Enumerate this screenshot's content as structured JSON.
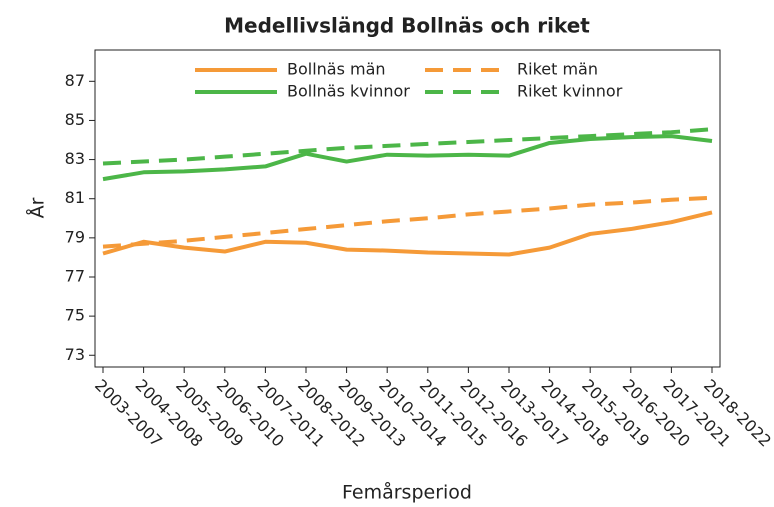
{
  "chart_data": {
    "type": "line",
    "title": "Medellivslängd Bollnäs och riket",
    "x_label": "Femårsperiod",
    "y_label": "År",
    "categories": [
      "2003-2007",
      "2004-2008",
      "2005-2009",
      "2006-2010",
      "2007-2011",
      "2008-2012",
      "2009-2013",
      "2010-2014",
      "2011-2015",
      "2012-2016",
      "2013-2017",
      "2014-2018",
      "2015-2019",
      "2016-2020",
      "2017-2021",
      "2018-2022"
    ],
    "series": [
      {
        "name": "Bollnäs män",
        "color": "#f59a38",
        "style": "solid",
        "values": [
          78.2,
          78.8,
          78.5,
          78.3,
          78.8,
          78.75,
          78.4,
          78.35,
          78.25,
          78.2,
          78.15,
          78.5,
          79.2,
          79.45,
          79.8,
          80.3
        ]
      },
      {
        "name": "Riket män",
        "color": "#f59a38",
        "style": "dashed",
        "values": [
          78.55,
          78.7,
          78.85,
          79.05,
          79.25,
          79.45,
          79.65,
          79.85,
          80.0,
          80.2,
          80.35,
          80.5,
          80.7,
          80.8,
          80.95,
          81.05
        ]
      },
      {
        "name": "Bollnäs kvinnor",
        "color": "#4cb648",
        "style": "solid",
        "values": [
          82.0,
          82.35,
          82.4,
          82.5,
          82.65,
          83.3,
          82.9,
          83.25,
          83.2,
          83.25,
          83.2,
          83.85,
          84.05,
          84.15,
          84.2,
          83.95
        ]
      },
      {
        "name": "Riket kvinnor",
        "color": "#4cb648",
        "style": "dashed",
        "values": [
          82.8,
          82.9,
          83.0,
          83.15,
          83.3,
          83.45,
          83.6,
          83.7,
          83.8,
          83.9,
          84.0,
          84.1,
          84.2,
          84.3,
          84.4,
          84.55
        ]
      }
    ],
    "ylim": [
      72.4,
      88.6
    ],
    "yticks": [
      73,
      75,
      77,
      79,
      81,
      83,
      85,
      87
    ],
    "grid": false,
    "legend": "top"
  }
}
